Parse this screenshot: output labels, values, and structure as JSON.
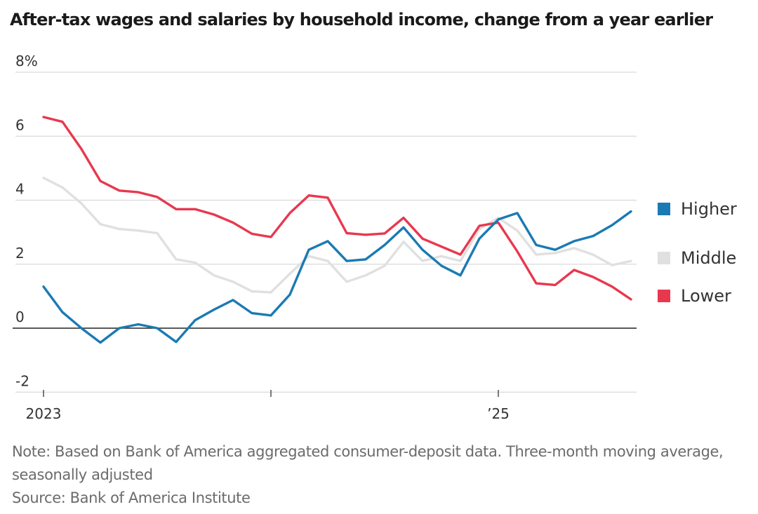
{
  "chart_data": {
    "type": "line",
    "title": "After-tax wages and salaries by household income, change from a year earlier",
    "xlabel": "",
    "ylabel": "",
    "ylim": [
      -2,
      8
    ],
    "y_ticks": [
      "8%",
      "6",
      "4",
      "2",
      "0",
      "-2"
    ],
    "y_tick_values": [
      8,
      6,
      4,
      2,
      0,
      -2
    ],
    "x_tick_labels": [
      "2023",
      "",
      "’25"
    ],
    "x_tick_months": [
      0,
      12,
      24
    ],
    "x_range_months": [
      0,
      31
    ],
    "grid": true,
    "legend_position": "right",
    "series": [
      {
        "name": "Higher",
        "color": "#1a7ab3",
        "values": [
          1.3,
          0.5,
          0.0,
          -0.45,
          0.0,
          0.12,
          0.0,
          -0.43,
          0.25,
          0.58,
          0.88,
          0.47,
          0.4,
          1.05,
          2.45,
          2.72,
          2.1,
          2.15,
          2.6,
          3.15,
          2.45,
          1.95,
          1.65,
          2.8,
          3.4,
          3.6,
          2.6,
          2.45,
          2.72,
          2.88,
          3.22,
          3.65
        ]
      },
      {
        "name": "Middle",
        "color": "#e0e0e0",
        "values": [
          4.7,
          4.4,
          3.9,
          3.25,
          3.1,
          3.05,
          2.97,
          2.15,
          2.05,
          1.65,
          1.45,
          1.15,
          1.12,
          1.7,
          2.25,
          2.1,
          1.45,
          1.65,
          1.95,
          2.7,
          2.1,
          2.25,
          2.1,
          3.1,
          3.45,
          3.05,
          2.3,
          2.35,
          2.5,
          2.3,
          1.97,
          2.1
        ]
      },
      {
        "name": "Lower",
        "color": "#e8384f",
        "values": [
          6.6,
          6.45,
          5.6,
          4.6,
          4.3,
          4.25,
          4.1,
          3.72,
          3.72,
          3.55,
          3.3,
          2.95,
          2.85,
          3.6,
          4.15,
          4.08,
          2.97,
          2.92,
          2.96,
          3.45,
          2.8,
          2.55,
          2.3,
          3.2,
          3.3,
          2.4,
          1.4,
          1.35,
          1.82,
          1.6,
          1.3,
          0.9
        ]
      }
    ],
    "zero_line_color": "#222222",
    "grid_color": "#d9d9d9"
  },
  "notes": {
    "note": "Note: Based on Bank of America aggregated consumer-deposit data. Three-month moving average, seasonally adjusted",
    "source": "Source: Bank of America Institute"
  }
}
